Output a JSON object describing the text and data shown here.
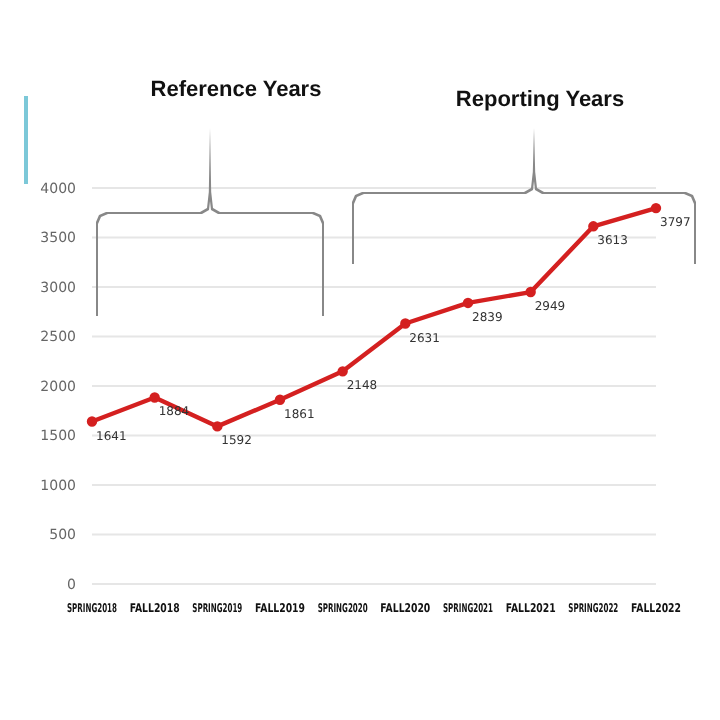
{
  "chart_data": {
    "type": "line",
    "categories": [
      "SPRING2018",
      "FALL2018",
      "SPRING2019",
      "FALL2019",
      "SPRING2020",
      "FALL2020",
      "SPRING2021",
      "FALL2021",
      "SPRING2022",
      "FALL2022"
    ],
    "series": [
      {
        "color": "#d42020",
        "values": [
          1641,
          1884,
          1592,
          1861,
          2148,
          2631,
          2839,
          2949,
          3613,
          3797
        ]
      }
    ],
    "ylim": [
      0,
      4000
    ],
    "yticks": [
      0,
      500,
      1000,
      1500,
      2000,
      2500,
      3000,
      3500,
      4000
    ],
    "grid": "y",
    "data_labels": true,
    "marker": "circle",
    "line_style": "solid",
    "annotations": [
      "Reference Years",
      "Reporting Years"
    ]
  }
}
